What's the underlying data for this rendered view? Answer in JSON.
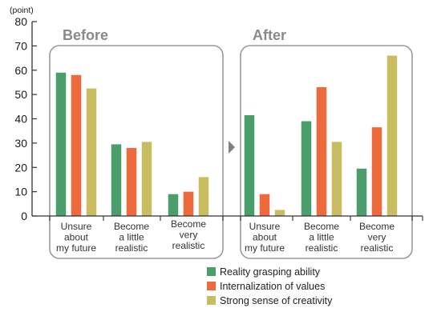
{
  "chart_data": {
    "type": "bar",
    "unit_label": "(point)",
    "ylim": [
      0,
      80
    ],
    "yticks": [
      0,
      10,
      20,
      30,
      40,
      50,
      60,
      70,
      80
    ],
    "series": [
      {
        "name": "Reality grasping ability",
        "color": "#4a9e6b"
      },
      {
        "name": "Internalization of values",
        "color": "#ee6a3c"
      },
      {
        "name": "Strong sense of creativity",
        "color": "#c9bd62"
      }
    ],
    "panels": [
      {
        "title": "Before",
        "categories": [
          {
            "lines": [
              "Unsure",
              "about",
              "my future"
            ],
            "values": [
              59,
              58,
              52.5
            ]
          },
          {
            "lines": [
              "Become",
              "a little",
              "realistic"
            ],
            "values": [
              29.5,
              28,
              30.5
            ]
          },
          {
            "lines": [
              "Become",
              "very",
              "realistic"
            ],
            "values": [
              9,
              10,
              16
            ]
          }
        ]
      },
      {
        "title": "After",
        "categories": [
          {
            "lines": [
              "Unsure",
              "about",
              "my future"
            ],
            "values": [
              41.5,
              9,
              2.5
            ]
          },
          {
            "lines": [
              "Become",
              "a little",
              "realistic"
            ],
            "values": [
              39,
              53,
              30.5
            ]
          },
          {
            "lines": [
              "Become",
              "very",
              "realistic"
            ],
            "values": [
              19.5,
              36.5,
              66
            ]
          }
        ]
      }
    ],
    "legend_position": "bottom-right"
  }
}
